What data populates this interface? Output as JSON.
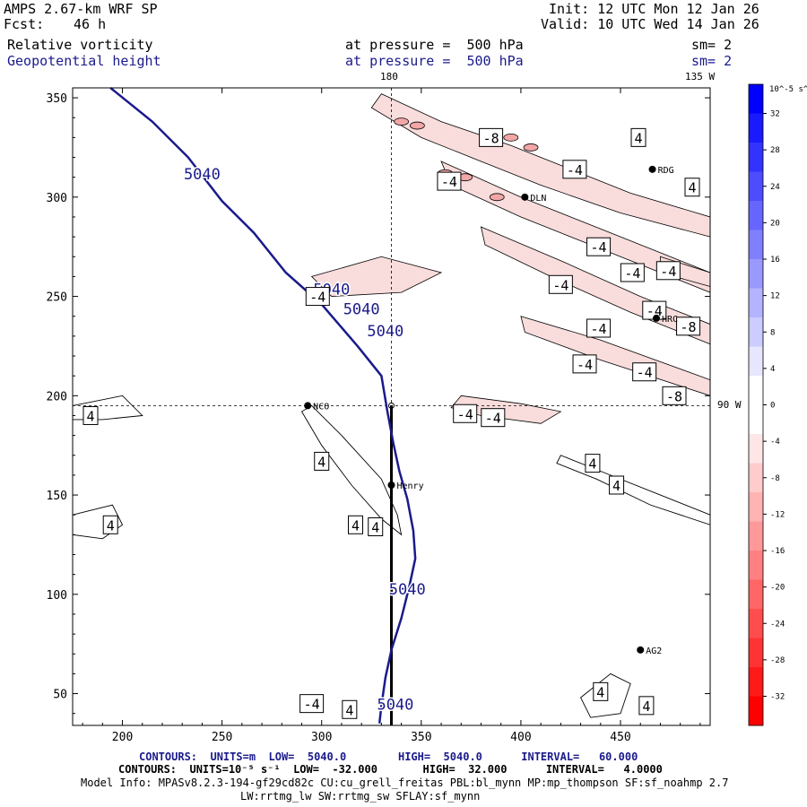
{
  "header": {
    "model": "AMPS 2.67-km WRF SP",
    "forecast_label": "Fcst:",
    "forecast_hours": "46 h",
    "init": "Init: 12 UTC Mon 12 Jan 26",
    "valid": "Valid: 10 UTC Wed 14 Jan 26",
    "field1_name": "Relative vorticity",
    "field1_level": "at pressure =  500 hPa",
    "field1_sm": "sm= 2",
    "field2_name": "Geopotential height",
    "field2_level": "at pressure =  500 hPa",
    "field2_sm": "sm= 2"
  },
  "map_labels": {
    "lon_180": "180",
    "lon_135w": "135 W",
    "lon_90w": "90 W",
    "stations": [
      {
        "name": "NCO",
        "x": 293,
        "y": 195
      },
      {
        "name": "Henry",
        "x": 335,
        "y": 155
      },
      {
        "name": "AG2",
        "x": 460,
        "y": 72
      },
      {
        "name": "DLN",
        "x": 402,
        "y": 300
      },
      {
        "name": "RDG",
        "x": 466,
        "y": 314
      },
      {
        "name": "HRC",
        "x": 468,
        "y": 239
      }
    ]
  },
  "colorbar": {
    "units": "10^-5 s^-1",
    "ticks": [
      "32",
      "28",
      "24",
      "20",
      "16",
      "12",
      "8",
      "4",
      "0",
      "-4",
      "-8",
      "-12",
      "-16",
      "-20",
      "-24",
      "-28",
      "-32"
    ],
    "colors": [
      "#0000ff",
      "#1a1aff",
      "#3333ff",
      "#4d4dff",
      "#6666ff",
      "#8080ff",
      "#9999ff",
      "#b3b3ff",
      "#ccccff",
      "#e6e6ff",
      "#ffffff",
      "#ffffff",
      "#ffe6e6",
      "#ffcccc",
      "#ffb3b3",
      "#ff9999",
      "#ff8080",
      "#ff6666",
      "#ff4d4d",
      "#ff3333",
      "#ff1a1a",
      "#ff0000"
    ]
  },
  "chart_data": {
    "type": "contour",
    "xlim": [
      175,
      495
    ],
    "ylim": [
      34,
      355
    ],
    "xticks": [
      200,
      250,
      300,
      350,
      400,
      450
    ],
    "yticks": [
      50,
      100,
      150,
      200,
      250,
      300,
      350
    ],
    "height_contour": {
      "value": 5040,
      "label": "5040",
      "points": [
        [
          194,
          355
        ],
        [
          215,
          338
        ],
        [
          233,
          320
        ],
        [
          250,
          298
        ],
        [
          266,
          282
        ],
        [
          282,
          262
        ],
        [
          300,
          246
        ],
        [
          318,
          225
        ],
        [
          330,
          210
        ],
        [
          333,
          192
        ],
        [
          336,
          176
        ],
        [
          339,
          162
        ],
        [
          343,
          148
        ],
        [
          346,
          132
        ],
        [
          347,
          118
        ],
        [
          344,
          104
        ],
        [
          340,
          88
        ],
        [
          335,
          72
        ],
        [
          332,
          58
        ],
        [
          330,
          44
        ],
        [
          329,
          35
        ]
      ],
      "labels": [
        [
          240,
          309
        ],
        [
          305,
          251
        ],
        [
          320,
          241
        ],
        [
          332,
          230
        ],
        [
          343,
          100
        ],
        [
          337,
          42
        ]
      ]
    },
    "vorticity_labels": [
      {
        "v": "-8",
        "x": 385,
        "y": 330
      },
      {
        "v": "-4",
        "x": 364,
        "y": 308
      },
      {
        "v": "-4",
        "x": 427,
        "y": 314
      },
      {
        "v": "4",
        "x": 459,
        "y": 330
      },
      {
        "v": "4",
        "x": 486,
        "y": 305
      },
      {
        "v": "-4",
        "x": 439,
        "y": 275
      },
      {
        "v": "-4",
        "x": 298,
        "y": 250
      },
      {
        "v": "-4",
        "x": 456,
        "y": 262
      },
      {
        "v": "-4",
        "x": 474,
        "y": 263
      },
      {
        "v": "-4",
        "x": 420,
        "y": 256
      },
      {
        "v": "-4",
        "x": 467,
        "y": 243
      },
      {
        "v": "-4",
        "x": 439,
        "y": 234
      },
      {
        "v": "-8",
        "x": 484,
        "y": 235
      },
      {
        "v": "-4",
        "x": 432,
        "y": 216
      },
      {
        "v": "-4",
        "x": 462,
        "y": 212
      },
      {
        "v": "-8",
        "x": 477,
        "y": 200
      },
      {
        "v": "4",
        "x": 184,
        "y": 190
      },
      {
        "v": "-4",
        "x": 372,
        "y": 191
      },
      {
        "v": "-4",
        "x": 386,
        "y": 189
      },
      {
        "v": "4",
        "x": 300,
        "y": 167
      },
      {
        "v": "4",
        "x": 436,
        "y": 166
      },
      {
        "v": "4",
        "x": 448,
        "y": 155
      },
      {
        "v": "4",
        "x": 317,
        "y": 135
      },
      {
        "v": "4",
        "x": 327,
        "y": 134
      },
      {
        "v": "4",
        "x": 194,
        "y": 135
      },
      {
        "v": "-4",
        "x": 295,
        "y": 45
      },
      {
        "v": "4",
        "x": 314,
        "y": 42
      },
      {
        "v": "4",
        "x": 440,
        "y": 51
      },
      {
        "v": "4",
        "x": 463,
        "y": 44
      }
    ]
  },
  "footer": {
    "line1": "CONTOURS:  UNITS=m  LOW=  5040.0        HIGH=  5040.0      INTERVAL=   60.000",
    "line2": "CONTOURS:  UNITS=10⁻⁵ s⁻¹  LOW=  -32.000       HIGH=  32.000      INTERVAL=   4.0000",
    "line3": "Model Info: MPASv8.2.3-194-gf29cd82c CU:cu_grell_freitas PBL:bl_mynn MP:mp_thompson SF:sf_noahmp 2.7",
    "line4": "LW:rrtmg_lw SW:rrtmg_sw SFLAY:sf_mynn"
  }
}
